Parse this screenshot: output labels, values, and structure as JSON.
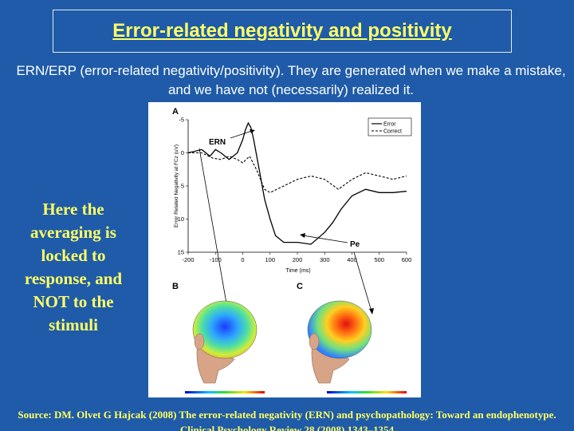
{
  "slide": {
    "title": "Error-related negativity and positivity",
    "intro": "ERN/ERP (error-related negativity/positivity). They are generated when we make a mistake, and we have not (necessarily) realized it.",
    "side_note": "Here the averaging is locked to response, and NOT to the stimuli",
    "source": "Source: DM. Olvet G Hajcak (2008) The error-related negativity (ERN) and psychopathology: Toward an endophenotype. Clinical Psychology Review 28 (2008) 1343–1354"
  },
  "figure": {
    "panel_a": "A",
    "panel_b": "B",
    "panel_c": "C",
    "ern_label": "ERN",
    "pe_label": "Pe",
    "colors": {
      "error": "#000000",
      "correct": "#000000",
      "bg": "#1f5ba8",
      "title": "#ffff66"
    }
  },
  "chart_data": {
    "type": "line",
    "xlabel": "Time (ms)",
    "ylabel": "Error Related Negativity at FCz (uV)",
    "xlim": [
      -200,
      600
    ],
    "ylim": [
      -5,
      15
    ],
    "y_inverted": true,
    "x_ticks": [
      "-200",
      "-100",
      "0",
      "100",
      "200",
      "300",
      "400",
      "500",
      "600"
    ],
    "y_ticks": [
      "-5",
      "0",
      "5",
      "10",
      "15"
    ],
    "legend": [
      "Error",
      "Correct"
    ],
    "legend_position": "top-right",
    "series": [
      {
        "name": "Error",
        "x": [
          -200,
          -150,
          -120,
          -100,
          -80,
          -50,
          -20,
          0,
          10,
          20,
          30,
          40,
          60,
          80,
          100,
          120,
          150,
          200,
          250,
          300,
          330,
          360,
          400,
          450,
          500,
          550,
          600
        ],
        "y": [
          0,
          -0.5,
          0.5,
          -0.5,
          0,
          1,
          0,
          -2,
          -3.5,
          -4.5,
          -3.8,
          -2,
          2.5,
          7,
          10,
          12.5,
          13.5,
          13.5,
          13.8,
          12,
          10.5,
          8.5,
          6.5,
          5.5,
          6,
          6,
          5.8
        ]
      },
      {
        "name": "Correct",
        "x": [
          -200,
          -150,
          -110,
          -80,
          -50,
          -20,
          0,
          25,
          50,
          80,
          100,
          150,
          200,
          250,
          300,
          350,
          400,
          450,
          500,
          550,
          600
        ],
        "y": [
          0,
          0,
          0.8,
          1,
          0.5,
          1,
          1.5,
          0.5,
          2.5,
          5.5,
          6,
          5,
          4,
          3.5,
          4,
          5.5,
          4,
          3,
          3.5,
          4,
          3.5
        ]
      }
    ]
  }
}
